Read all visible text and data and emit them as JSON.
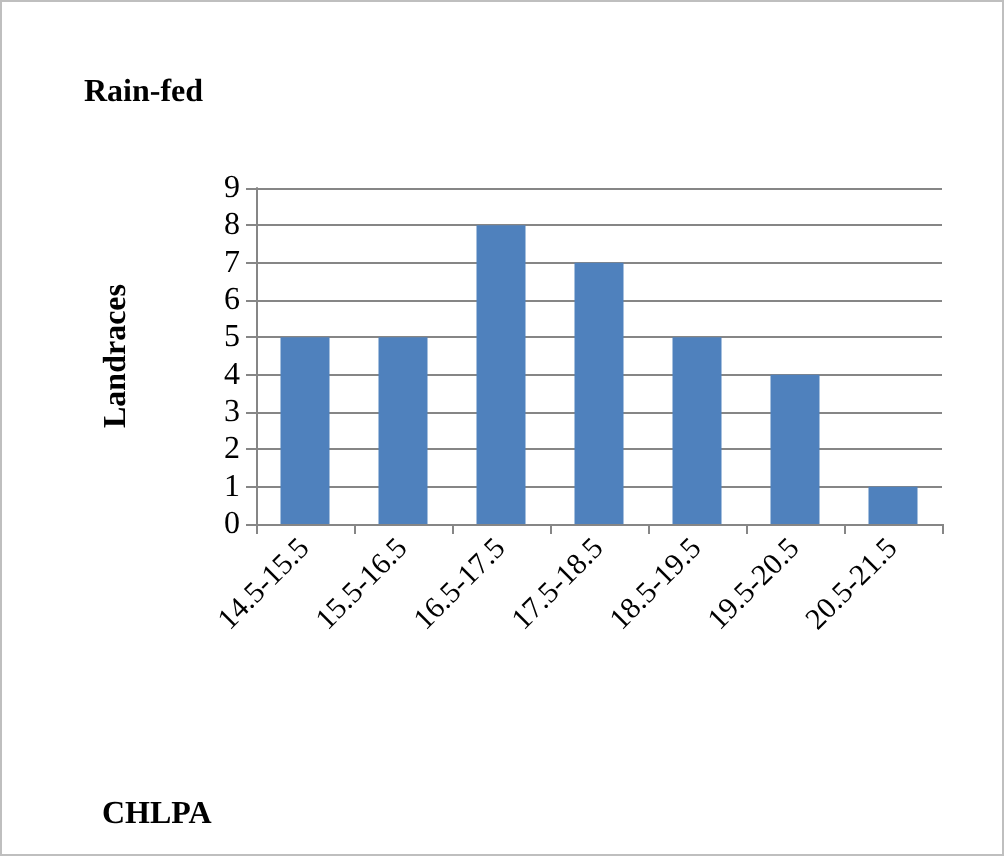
{
  "chart_data": {
    "type": "bar",
    "title": "Rain-fed",
    "annotations": [
      "CHLPA"
    ],
    "ylabel": "Landraces",
    "categories": [
      "14.5-15.5",
      "15.5-16.5",
      "16.5-17.5",
      "17.5-18.5",
      "18.5-19.5",
      "19.5-20.5",
      "20.5-21.5"
    ],
    "values": [
      5,
      5,
      8,
      7,
      5,
      4,
      1
    ],
    "color": "#4f81bd",
    "ylim": [
      0,
      9
    ],
    "yticks": [
      0,
      1,
      2,
      3,
      4,
      5,
      6,
      7,
      8,
      9
    ],
    "grid": "y"
  }
}
